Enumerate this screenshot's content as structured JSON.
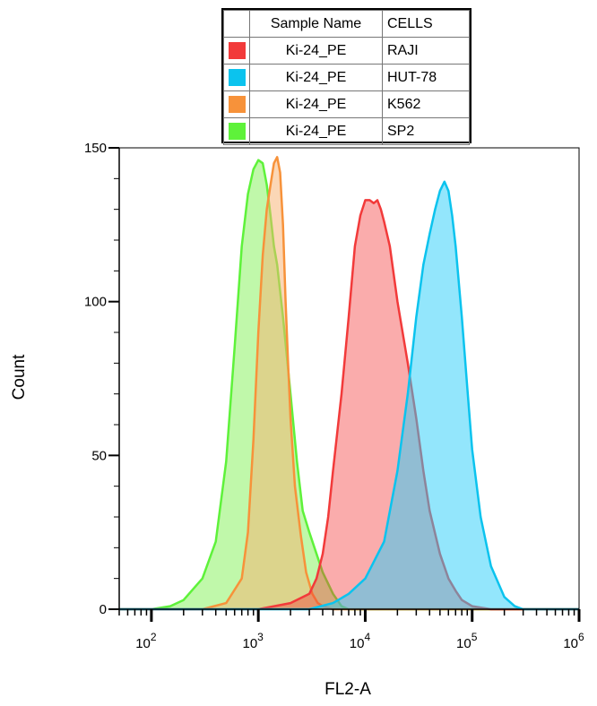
{
  "legend": {
    "header": {
      "name": "Sample Name",
      "cells": "CELLS"
    },
    "rows": [
      {
        "name": "Ki-24_PE",
        "cells": "RAJI",
        "color": "#f23a3a"
      },
      {
        "name": "Ki-24_PE",
        "cells": "HUT-78",
        "color": "#0bc3ee"
      },
      {
        "name": "Ki-24_PE",
        "cells": "K562",
        "color": "#f7923a"
      },
      {
        "name": "Ki-24_PE",
        "cells": "SP2",
        "color": "#5ef23a"
      }
    ]
  },
  "chart_data": {
    "type": "area",
    "xlabel": "FL2-A",
    "ylabel": "Count",
    "xscale": "log",
    "xlim": [
      50,
      1000000
    ],
    "ylim": [
      0,
      150
    ],
    "xticks": [
      100,
      1000,
      10000,
      100000,
      1000000
    ],
    "yticks": [
      0,
      50,
      100,
      150
    ],
    "series": [
      {
        "name": "SP2",
        "stroke": "#5ef23a",
        "fill": "rgba(140,242,100,0.55)",
        "x": [
          100,
          150,
          200,
          300,
          400,
          500,
          600,
          700,
          800,
          900,
          1000,
          1100,
          1200,
          1300,
          1400,
          1500,
          1700,
          2000,
          2300,
          2600,
          3000,
          3500,
          4000,
          5000,
          6000,
          7000
        ],
        "y": [
          0,
          1,
          3,
          10,
          22,
          48,
          85,
          118,
          135,
          143,
          146,
          145,
          138,
          128,
          118,
          112,
          95,
          70,
          48,
          32,
          25,
          18,
          12,
          5,
          1,
          0
        ]
      },
      {
        "name": "K562",
        "stroke": "#f7923a",
        "fill": "rgba(247,175,110,0.5)",
        "x": [
          300,
          500,
          700,
          800,
          900,
          1000,
          1100,
          1200,
          1300,
          1400,
          1500,
          1600,
          1700,
          1800,
          1900,
          2000,
          2200,
          2500,
          2800,
          3200,
          3600,
          4000,
          5000
        ],
        "y": [
          0,
          2,
          10,
          25,
          55,
          90,
          115,
          130,
          138,
          145,
          147,
          142,
          125,
          100,
          80,
          62,
          40,
          24,
          12,
          5,
          2,
          1,
          0
        ]
      },
      {
        "name": "RAJI",
        "stroke": "#f23a3a",
        "fill": "rgba(242,58,58,0.42)",
        "x": [
          1000,
          2000,
          3000,
          3500,
          4000,
          4500,
          5000,
          6000,
          7000,
          8000,
          9000,
          10000,
          11000,
          12000,
          13000,
          14000,
          15000,
          17000,
          20000,
          25000,
          30000,
          35000,
          40000,
          50000,
          60000,
          70000,
          80000,
          100000,
          150000
        ],
        "y": [
          0,
          2,
          5,
          10,
          18,
          30,
          45,
          70,
          95,
          118,
          128,
          133,
          133,
          132,
          133,
          130,
          126,
          118,
          100,
          80,
          62,
          45,
          32,
          18,
          10,
          6,
          3,
          1,
          0
        ]
      },
      {
        "name": "HUT-78",
        "stroke": "#0bc3ee",
        "fill": "rgba(40,205,250,0.5)",
        "x": [
          3000,
          5000,
          7000,
          10000,
          15000,
          20000,
          25000,
          30000,
          35000,
          40000,
          45000,
          50000,
          55000,
          60000,
          65000,
          70000,
          80000,
          90000,
          100000,
          120000,
          150000,
          200000,
          250000,
          300000
        ],
        "y": [
          0,
          2,
          5,
          10,
          22,
          45,
          70,
          95,
          112,
          122,
          130,
          136,
          139,
          136,
          128,
          118,
          95,
          72,
          52,
          30,
          14,
          4,
          1,
          0
        ]
      }
    ]
  }
}
